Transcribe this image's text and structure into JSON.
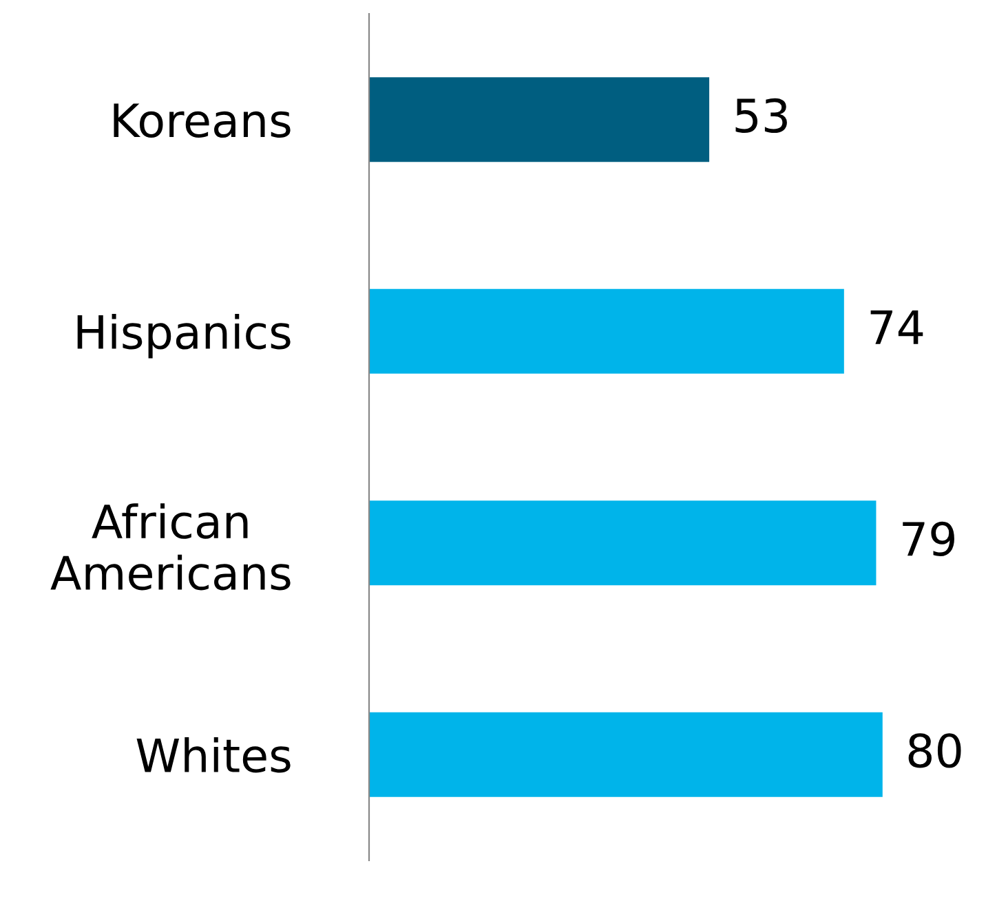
{
  "chart_data": {
    "type": "bar",
    "orientation": "horizontal",
    "categories": [
      "Koreans",
      "Hispanics",
      "African\nAmericans",
      "Whites"
    ],
    "values": [
      53,
      74,
      79,
      80
    ],
    "colors": [
      "#005e80",
      "#00b4ea",
      "#00b4ea",
      "#00b4ea"
    ],
    "data_labels": true,
    "grid": false,
    "legend": false
  }
}
